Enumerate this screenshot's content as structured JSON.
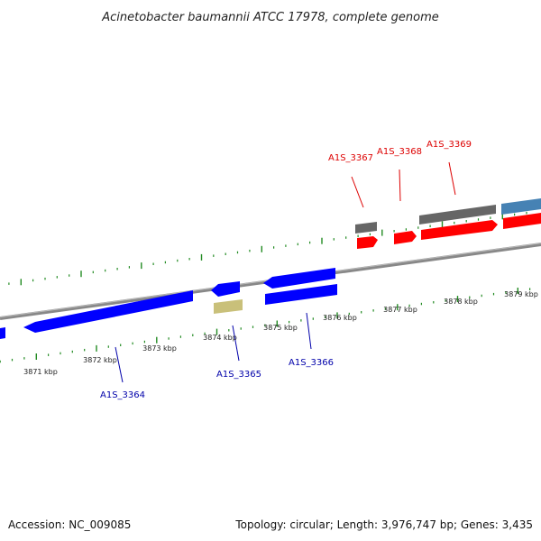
{
  "title": "Acinetobacter baumannii ATCC 17978, complete genome",
  "footer": {
    "accession": "Accession: NC_009085",
    "stats": "Topology: circular; Length: 3,976,747 bp; Genes: 3,435"
  },
  "colors": {
    "forward_cds": "#ff0000",
    "reverse_cds": "#0000ff",
    "forward_gray": "#666666",
    "reverse_khaki": "#c9c07a",
    "other_feature": "#4682b4",
    "backbone": "#888888",
    "ticks": "#228b22",
    "forward_label": "#dd0000",
    "reverse_label": "#0000aa"
  },
  "scale": {
    "unit": "kbp",
    "labels": [
      "3871 kbp",
      "3872 kbp",
      "3873 kbp",
      "3874 kbp",
      "3875 kbp",
      "3876 kbp",
      "3877 kbp",
      "3878 kbp",
      "3879 kbp"
    ]
  },
  "gene_labels": [
    {
      "id": "forward-1",
      "text": "A1S_3367",
      "strand": "forward"
    },
    {
      "id": "forward-2",
      "text": "A1S_3368",
      "strand": "forward"
    },
    {
      "id": "forward-3",
      "text": "A1S_3369",
      "strand": "forward"
    },
    {
      "id": "reverse-1",
      "text": "A1S_3364",
      "strand": "reverse"
    },
    {
      "id": "reverse-2",
      "text": "A1S_3365",
      "strand": "reverse"
    },
    {
      "id": "reverse-3",
      "text": "A1S_3366",
      "strand": "reverse"
    }
  ]
}
